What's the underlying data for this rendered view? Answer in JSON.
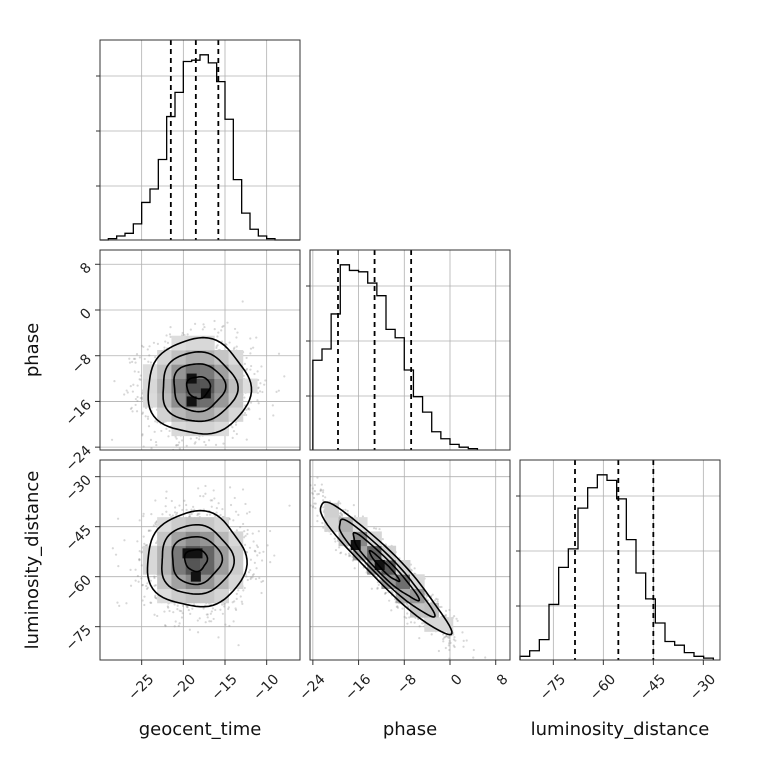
{
  "chart_data": {
    "type": "corner",
    "parameters": [
      "geocent_time",
      "phase",
      "luminosity_distance"
    ],
    "grid": true,
    "axes": {
      "geocent_time": {
        "range": [
          -30,
          -6
        ],
        "ticks": [
          -25,
          -20,
          -15,
          -10
        ],
        "tick_labels": [
          "−25",
          "−20",
          "−15",
          "−10"
        ]
      },
      "phase": {
        "range": [
          -24.5,
          10.5
        ],
        "ticks": [
          -24,
          -16,
          -8,
          0,
          8
        ],
        "tick_labels": [
          "−24",
          "−16",
          "−8",
          "0",
          "8"
        ]
      },
      "luminosity_distance": {
        "range": [
          -85,
          -25
        ],
        "ticks": [
          -75,
          -60,
          -45,
          -30
        ],
        "tick_labels": [
          "−75",
          "−60",
          "−45",
          "−30"
        ]
      }
    },
    "marginals": [
      {
        "parameter": "geocent_time",
        "quantiles": [
          -21.5,
          -18.5,
          -15.8
        ],
        "bin_start": -30,
        "bin_width": 1,
        "counts": [
          0,
          1,
          3,
          5,
          12,
          28,
          38,
          60,
          92,
          110,
          133,
          134,
          138,
          132,
          118,
          90,
          45,
          20,
          8,
          3,
          1,
          0,
          0,
          0
        ]
      },
      {
        "parameter": "phase",
        "quantiles": [
          -19.6,
          -13.2,
          -6.8
        ],
        "bin_start": -24,
        "bin_width": 1.6,
        "counts": [
          64,
          72,
          97,
          132,
          128,
          127,
          119,
          110,
          86,
          80,
          57,
          38,
          27,
          13,
          8,
          4,
          2,
          1
        ]
      },
      {
        "parameter": "luminosity_distance",
        "quantiles": [
          -68.5,
          -55.5,
          -45.0
        ],
        "bin_start": -85,
        "bin_width": 2.9,
        "counts": [
          2,
          5,
          11,
          30,
          50,
          60,
          82,
          93,
          100,
          97,
          87,
          65,
          47,
          33,
          20,
          10,
          8,
          4,
          2,
          1
        ]
      }
    ],
    "joint": [
      {
        "x": "geocent_time",
        "y": "phase",
        "center": [
          -18.2,
          -13.5
        ],
        "spread": [
          2.8,
          3.8
        ],
        "corr": 0,
        "levels": [
          0.5,
          1.1,
          1.6,
          2.2
        ],
        "hot_spots": [
          [
            -19,
            -12
          ],
          [
            -19,
            -16
          ],
          [
            -17.3,
            -14.6
          ]
        ]
      },
      {
        "x": "geocent_time",
        "y": "luminosity_distance",
        "center": [
          -18.5,
          -55
        ],
        "spread": [
          2.7,
          6.5
        ],
        "corr": 0,
        "levels": [
          0.5,
          1.1,
          1.6,
          2.2
        ],
        "hot_spots": [
          [
            -19.5,
            -53
          ],
          [
            -18.3,
            -53
          ],
          [
            -18.5,
            -60
          ]
        ]
      },
      {
        "x": "phase",
        "y": "luminosity_distance",
        "center": [
          -11.5,
          -57
        ],
        "spread": [
          5.2,
          9.0
        ],
        "corr": -0.95,
        "levels": [
          0.5,
          1.1,
          1.6,
          2.2
        ],
        "hot_spots": [
          [
            -16.5,
            -50.5
          ],
          [
            -12.3,
            -56.5
          ]
        ]
      }
    ]
  }
}
